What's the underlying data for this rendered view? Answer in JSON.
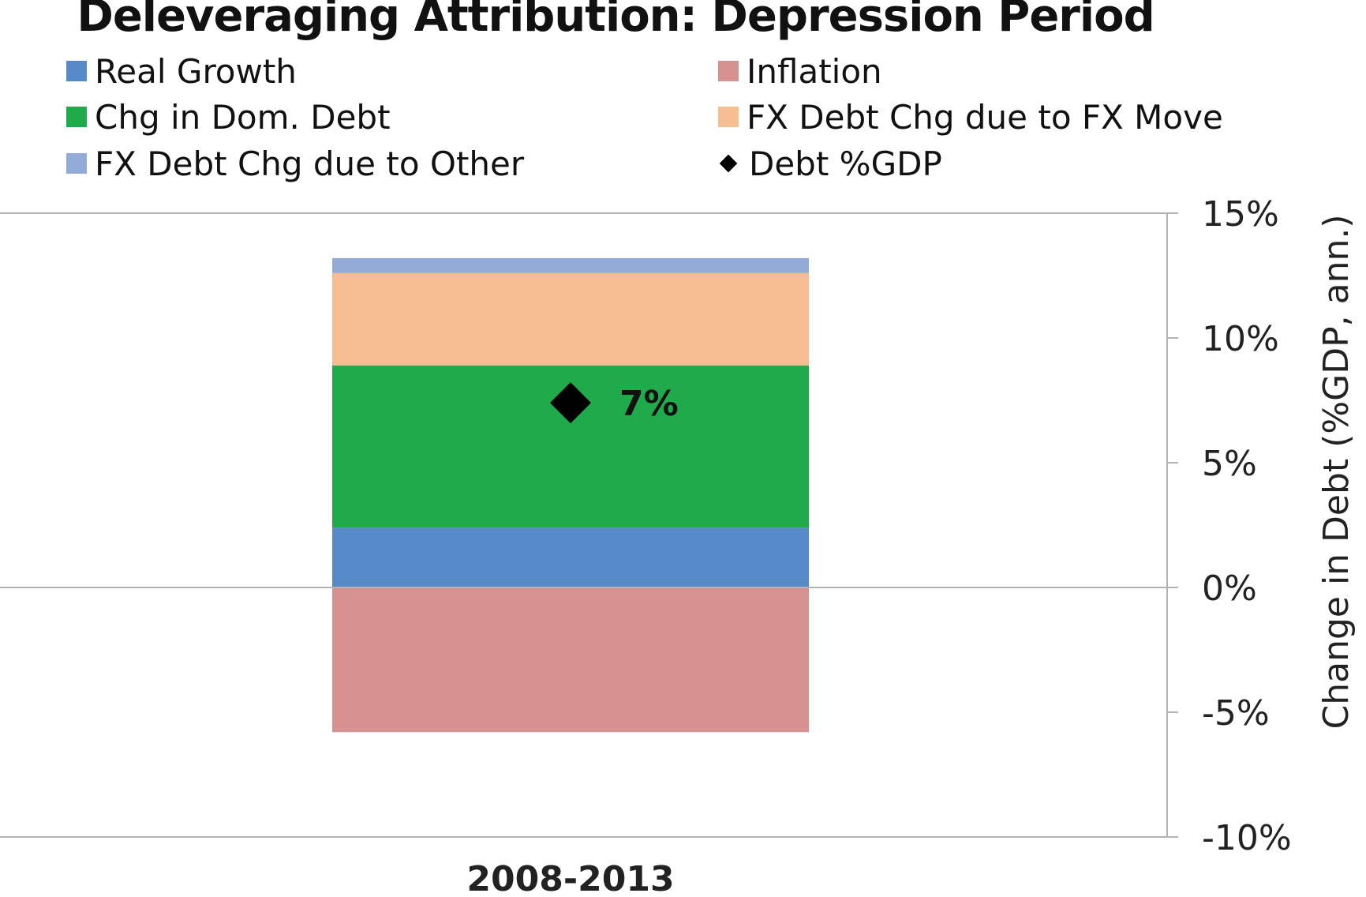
{
  "chart_data": {
    "type": "bar",
    "stacked": true,
    "title": "Deleveraging Attribution: Depression Period",
    "categories": [
      "2008-2013"
    ],
    "ylabel": "Change in Debt (%GDP, ann.)",
    "ylim": [
      -10,
      15
    ],
    "yticks": [
      "15%",
      "10%",
      "5%",
      "0%",
      "-5%",
      "-10%"
    ],
    "ytick_values": [
      15,
      10,
      5,
      0,
      -5,
      -10
    ],
    "legend_placement": "top",
    "series": [
      {
        "name": "Real Growth",
        "color": "#5589C7",
        "values": [
          2.4
        ]
      },
      {
        "name": "Inflation",
        "color": "#D69291",
        "values": [
          -5.8
        ]
      },
      {
        "name": "Chg in Dom. Debt",
        "color": "#1FAA4B",
        "values": [
          6.5
        ]
      },
      {
        "name": "FX Debt Chg due to FX Move",
        "color": "#F6BE90",
        "values": [
          3.7
        ]
      },
      {
        "name": "FX Debt Chg due to Other",
        "color": "#93ABD6",
        "values": [
          0.6
        ]
      }
    ],
    "markers": {
      "name": "Debt %GDP",
      "values": [
        7.4
      ],
      "labels": [
        "7%"
      ]
    }
  }
}
